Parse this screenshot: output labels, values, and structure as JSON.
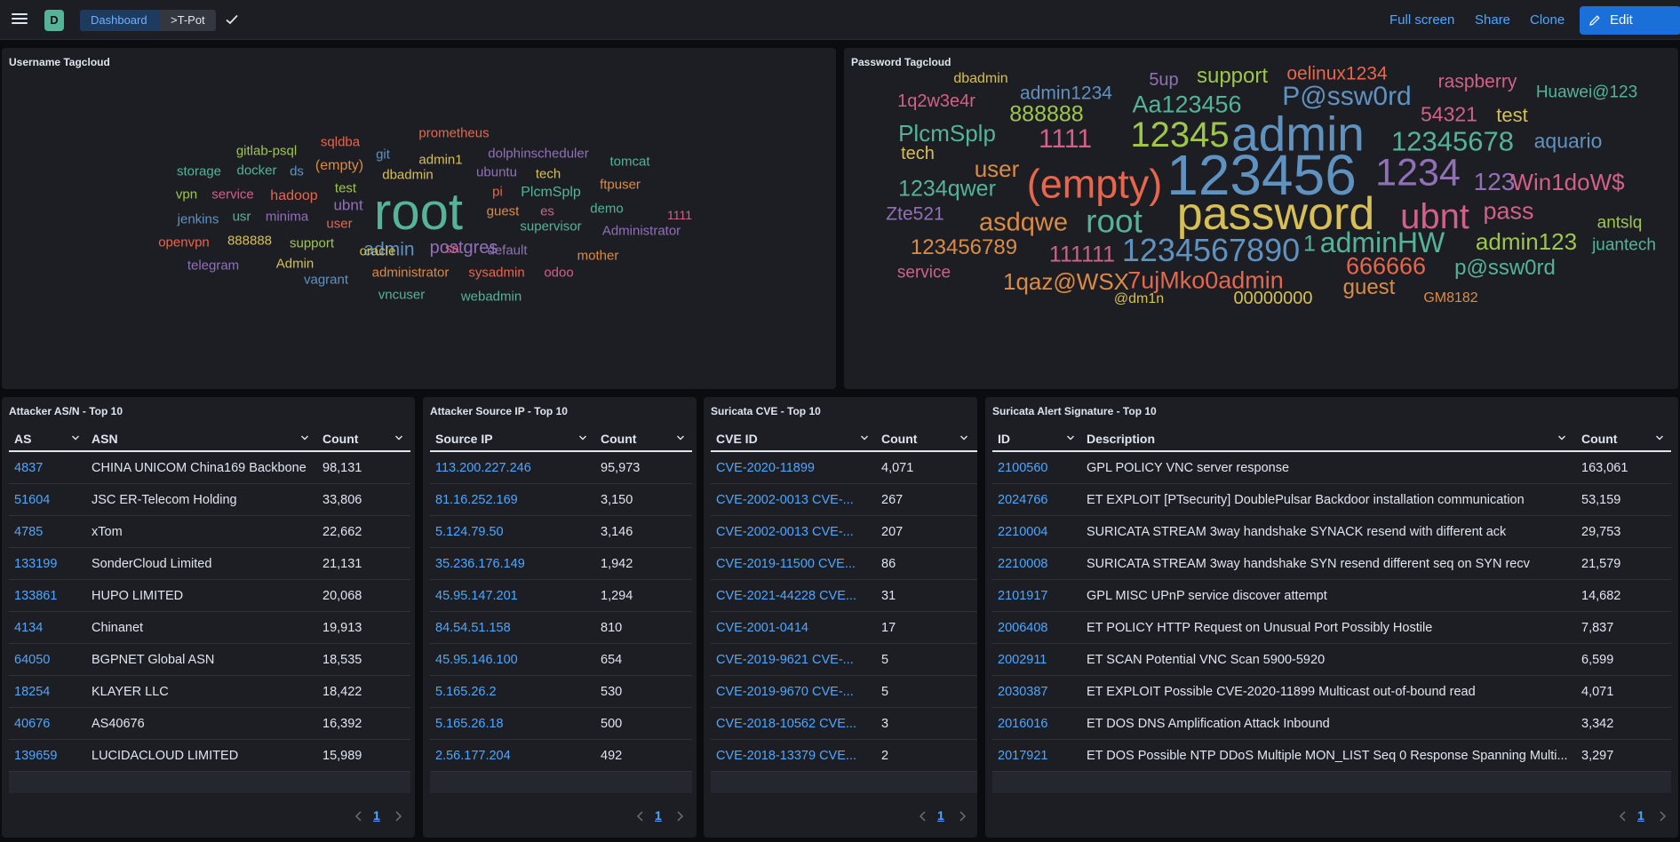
{
  "header": {
    "app_letter": "D",
    "breadcrumb": [
      "Dashboard",
      ">T-Pot"
    ],
    "actions": [
      "Full screen",
      "Share",
      "Clone"
    ],
    "edit_label": "Edit"
  },
  "panels": {
    "username_cloud": {
      "title": "Username Tagcloud"
    },
    "password_cloud": {
      "title": "Password Tagcloud"
    },
    "as_table": {
      "title": "Attacker AS/N - Top 10"
    },
    "ip_table": {
      "title": "Attacker Source IP - Top 10"
    },
    "cve_table": {
      "title": "Suricata CVE - Top 10"
    },
    "sig_table": {
      "title": "Suricata Alert Signature - Top 10"
    }
  },
  "username_words": [
    "root",
    "admin",
    "postgres",
    "prometheus",
    "sqldba",
    "git",
    "admin1",
    "dolphinscheduler",
    "gitlab-psql",
    "(empty)",
    "storage",
    "docker",
    "ds",
    "dbadmin",
    "ubuntu",
    "tech",
    "tomcat",
    "vpn",
    "service",
    "hadoop",
    "test",
    "ubnt",
    "pi",
    "PlcmSplp",
    "ftpuser",
    "guest",
    "es",
    "demo",
    "1111",
    "jenkins",
    "usr",
    "minima",
    "user",
    "supervisor",
    "Administrator",
    "openvpn",
    "888888",
    "support",
    "oracle",
    "sa",
    "default",
    "mother",
    "telegram",
    "Admin",
    "vagrant",
    "administrator",
    "sysadmin",
    "odoo",
    "vncuser",
    "webadmin"
  ],
  "password_words": [
    "dbadmin",
    "5up",
    "support",
    "oelinux1234",
    "raspberry",
    "1q2w3e4r",
    "admin1234",
    "Aa123456",
    "P@ssw0rd",
    "Huawei@123",
    "888888",
    "54321",
    "test",
    "PlcmSplp",
    "1111",
    "12345",
    "admin",
    "12345678",
    "aquario",
    "tech",
    "user",
    "(empty)",
    "123456",
    "1234",
    "123",
    "Win1doW$",
    "1234qwer",
    "Zte521",
    "asdqwe",
    "root",
    "password",
    "ubnt",
    "pass",
    "antslq",
    "123456789",
    "111111",
    "1234567890",
    "1",
    "adminHW",
    "admin123",
    "juantech",
    "service",
    "1qaz@WSX",
    "7ujMko0admin",
    "666666",
    "p@ssw0rd",
    "@dm1n",
    "00000000",
    "guest",
    "GM8182"
  ],
  "as_table": {
    "columns": [
      "AS",
      "ASN",
      "Count"
    ],
    "rows": [
      [
        "4837",
        "CHINA UNICOM China169 Backbone",
        "98,131"
      ],
      [
        "51604",
        "JSC ER-Telecom Holding",
        "33,806"
      ],
      [
        "4785",
        "xTom",
        "22,662"
      ],
      [
        "133199",
        "SonderCloud Limited",
        "21,131"
      ],
      [
        "133861",
        "HUPO LIMITED",
        "20,068"
      ],
      [
        "4134",
        "Chinanet",
        "19,913"
      ],
      [
        "64050",
        "BGPNET Global ASN",
        "18,535"
      ],
      [
        "18254",
        "KLAYER LLC",
        "18,422"
      ],
      [
        "40676",
        "AS40676",
        "16,392"
      ],
      [
        "139659",
        "LUCIDACLOUD LIMITED",
        "15,989"
      ]
    ],
    "page": "1"
  },
  "ip_table": {
    "columns": [
      "Source IP",
      "Count"
    ],
    "rows": [
      [
        "113.200.227.246",
        "95,973"
      ],
      [
        "81.16.252.169",
        "3,150"
      ],
      [
        "5.124.79.50",
        "3,146"
      ],
      [
        "35.236.176.149",
        "1,942"
      ],
      [
        "45.95.147.201",
        "1,294"
      ],
      [
        "84.54.51.158",
        "810"
      ],
      [
        "45.95.146.100",
        "654"
      ],
      [
        "5.165.26.2",
        "530"
      ],
      [
        "5.165.26.18",
        "500"
      ],
      [
        "2.56.177.204",
        "492"
      ]
    ],
    "page": "1"
  },
  "cve_table": {
    "columns": [
      "CVE ID",
      "Count"
    ],
    "rows": [
      [
        "CVE-2020-11899",
        "4,071"
      ],
      [
        "CVE-2002-0013 CVE-...",
        "267"
      ],
      [
        "CVE-2002-0013 CVE-...",
        "207"
      ],
      [
        "CVE-2019-11500 CVE...",
        "86"
      ],
      [
        "CVE-2021-44228 CVE...",
        "31"
      ],
      [
        "CVE-2001-0414",
        "17"
      ],
      [
        "CVE-2019-9621 CVE-...",
        "5"
      ],
      [
        "CVE-2019-9670 CVE-...",
        "5"
      ],
      [
        "CVE-2018-10562 CVE...",
        "3"
      ],
      [
        "CVE-2018-13379 CVE...",
        "2"
      ]
    ],
    "page": "1"
  },
  "sig_table": {
    "columns": [
      "ID",
      "Description",
      "Count"
    ],
    "rows": [
      [
        "2100560",
        "GPL POLICY VNC server response",
        "163,061"
      ],
      [
        "2024766",
        "ET EXPLOIT [PTsecurity] DoublePulsar Backdoor installation communication",
        "53,159"
      ],
      [
        "2210004",
        "SURICATA STREAM 3way handshake SYNACK resend with different ack",
        "29,753"
      ],
      [
        "2210008",
        "SURICATA STREAM 3way handshake SYN resend different seq on SYN recv",
        "21,579"
      ],
      [
        "2101917",
        "GPL MISC UPnP service discover attempt",
        "14,682"
      ],
      [
        "2006408",
        "ET POLICY HTTP Request on Unusual Port Possibly Hostile",
        "7,837"
      ],
      [
        "2002911",
        "ET SCAN Potential VNC Scan 5900-5920",
        "6,599"
      ],
      [
        "2030387",
        "ET EXPLOIT Possible CVE-2020-11899 Multicast out-of-bound read",
        "4,071"
      ],
      [
        "2016016",
        "ET DOS DNS Amplification Attack Inbound",
        "3,342"
      ],
      [
        "2017921",
        "ET DOS Possible NTP DDoS Multiple MON_LIST Seq 0 Response Spanning Multi...",
        "3,297"
      ]
    ],
    "page": "1"
  }
}
